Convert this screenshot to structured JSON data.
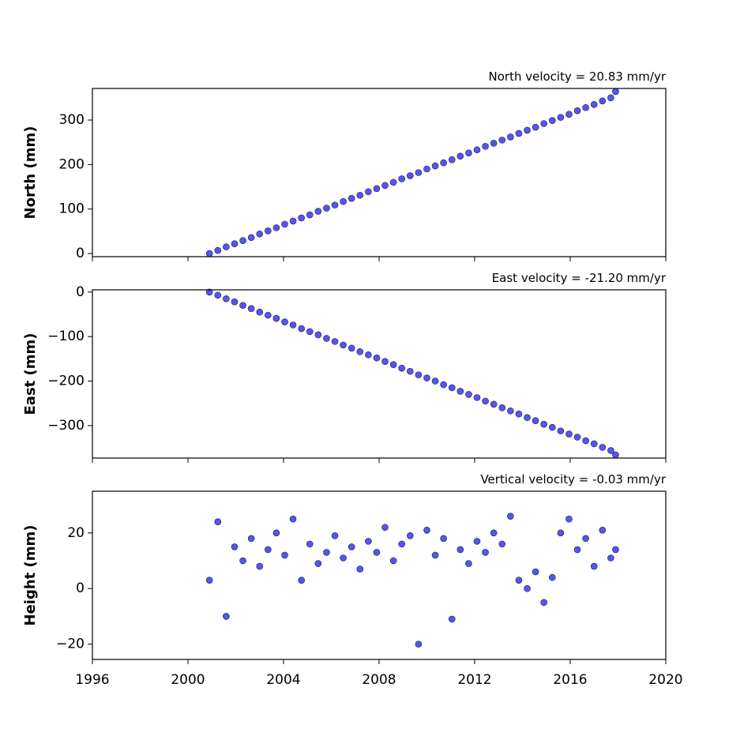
{
  "chart_data": [
    {
      "type": "scatter",
      "title": "North velocity = 20.83 mm/yr",
      "ylabel": "North (mm)",
      "color": "#5555f0",
      "x": [
        2000.9,
        2001.25,
        2001.6,
        2001.95,
        2002.3,
        2002.65,
        2003.0,
        2003.35,
        2003.7,
        2004.05,
        2004.4,
        2004.75,
        2005.1,
        2005.45,
        2005.8,
        2006.15,
        2006.5,
        2006.85,
        2007.2,
        2007.55,
        2007.9,
        2008.25,
        2008.6,
        2008.95,
        2009.3,
        2009.65,
        2010.0,
        2010.35,
        2010.7,
        2011.05,
        2011.4,
        2011.75,
        2012.1,
        2012.45,
        2012.8,
        2013.15,
        2013.5,
        2013.85,
        2014.2,
        2014.55,
        2014.9,
        2015.25,
        2015.6,
        2015.95,
        2016.3,
        2016.65,
        2017.0,
        2017.35,
        2017.7,
        2017.9
      ],
      "values": [
        0,
        7,
        15,
        22,
        29,
        36,
        44,
        51,
        58,
        66,
        73,
        80,
        87,
        95,
        102,
        109,
        117,
        124,
        131,
        139,
        146,
        153,
        160,
        168,
        175,
        182,
        190,
        197,
        204,
        211,
        219,
        226,
        233,
        241,
        248,
        255,
        262,
        270,
        277,
        284,
        292,
        299,
        306,
        313,
        321,
        328,
        335,
        343,
        350,
        364
      ],
      "xlim": [
        1996,
        2020
      ],
      "ylim": [
        -7,
        371
      ],
      "yticks": [
        0,
        100,
        200,
        300
      ]
    },
    {
      "type": "scatter",
      "title": "East velocity = -21.20 mm/yr",
      "ylabel": "East (mm)",
      "color": "#5555f0",
      "x": [
        2000.9,
        2001.25,
        2001.6,
        2001.95,
        2002.3,
        2002.65,
        2003.0,
        2003.35,
        2003.7,
        2004.05,
        2004.4,
        2004.75,
        2005.1,
        2005.45,
        2005.8,
        2006.15,
        2006.5,
        2006.85,
        2007.2,
        2007.55,
        2007.9,
        2008.25,
        2008.6,
        2008.95,
        2009.3,
        2009.65,
        2010.0,
        2010.35,
        2010.7,
        2011.05,
        2011.4,
        2011.75,
        2012.1,
        2012.45,
        2012.8,
        2013.15,
        2013.5,
        2013.85,
        2014.2,
        2014.55,
        2014.9,
        2015.25,
        2015.6,
        2015.95,
        2016.3,
        2016.65,
        2017.0,
        2017.35,
        2017.7,
        2017.9
      ],
      "values": [
        0,
        -7,
        -15,
        -22,
        -30,
        -37,
        -45,
        -52,
        -59,
        -67,
        -74,
        -82,
        -89,
        -96,
        -104,
        -111,
        -119,
        -126,
        -134,
        -141,
        -148,
        -156,
        -163,
        -171,
        -178,
        -186,
        -193,
        -200,
        -208,
        -215,
        -223,
        -230,
        -237,
        -245,
        -252,
        -260,
        -267,
        -274,
        -282,
        -289,
        -297,
        -304,
        -312,
        -319,
        -326,
        -334,
        -341,
        -349,
        -356,
        -366
      ],
      "xlim": [
        1996,
        2020
      ],
      "ylim": [
        -373,
        5
      ],
      "yticks": [
        0,
        {
          "value": -100,
          "label": "−100"
        },
        {
          "value": -200,
          "label": "−200"
        },
        {
          "value": -300,
          "label": "−300"
        }
      ]
    },
    {
      "type": "scatter",
      "title": "Vertical velocity = -0.03 mm/yr",
      "ylabel": "Height (mm)",
      "color": "#5555f0",
      "x": [
        2000.9,
        2001.25,
        2001.6,
        2001.95,
        2002.3,
        2002.65,
        2003.0,
        2003.35,
        2003.7,
        2004.05,
        2004.4,
        2004.75,
        2005.1,
        2005.45,
        2005.8,
        2006.15,
        2006.5,
        2006.85,
        2007.2,
        2007.55,
        2007.9,
        2008.25,
        2008.6,
        2008.95,
        2009.3,
        2009.65,
        2010.0,
        2010.35,
        2010.7,
        2011.05,
        2011.4,
        2011.75,
        2012.1,
        2012.45,
        2012.8,
        2013.15,
        2013.5,
        2013.85,
        2014.2,
        2014.55,
        2014.9,
        2015.25,
        2015.6,
        2015.95,
        2016.3,
        2016.65,
        2017.0,
        2017.35,
        2017.7,
        2017.9
      ],
      "values": [
        3,
        24,
        -10,
        15,
        10,
        18,
        8,
        14,
        20,
        12,
        25,
        3,
        16,
        9,
        13,
        19,
        11,
        15,
        7,
        17,
        13,
        22,
        10,
        16,
        19,
        -20,
        21,
        12,
        18,
        -11,
        14,
        9,
        17,
        13,
        20,
        16,
        26,
        3,
        0,
        6,
        -5,
        4,
        20,
        25,
        14,
        18,
        8,
        21,
        11,
        14
      ],
      "xlim": [
        1996,
        2020
      ],
      "ylim": [
        -25.5,
        35
      ],
      "yticks": [
        {
          "value": -20,
          "label": "−20"
        },
        0,
        20
      ],
      "xticks": [
        1996,
        2000,
        2004,
        2008,
        2012,
        2016,
        2020
      ]
    }
  ]
}
